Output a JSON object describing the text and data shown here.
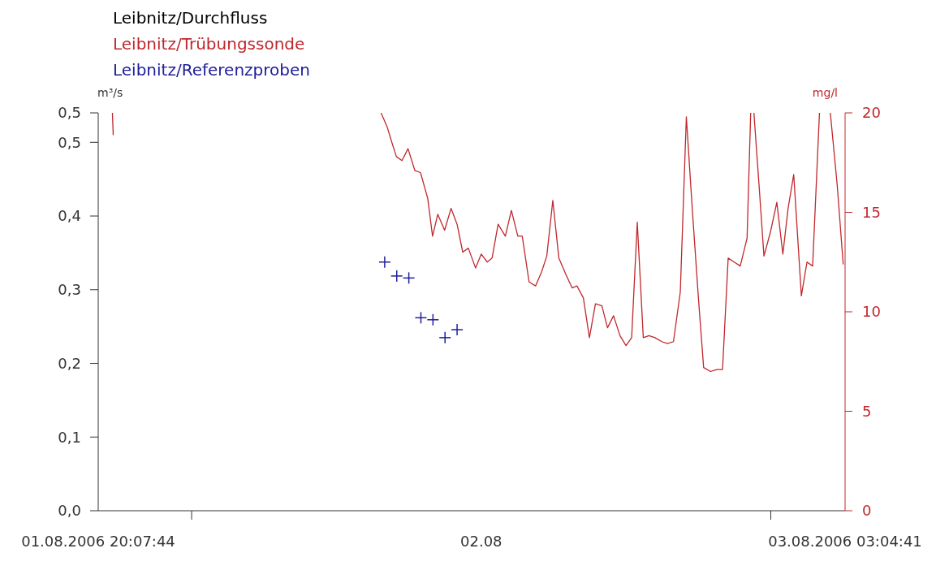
{
  "chart_data": {
    "type": "line",
    "xlim": [
      "2006-08-01T20:07:44",
      "2006-08-03T03:04:41"
    ],
    "xticks": [
      {
        "value": "2006-08-01T20:07:44",
        "label": "01.08.2006 20:07:44"
      },
      {
        "value": "2006-08-02T00:00",
        "label": null
      },
      {
        "value": "2006-08-02T12:00",
        "label": "02.08"
      },
      {
        "value": "2006-08-03T00:00",
        "label": null
      },
      {
        "value": "2006-08-03T03:04:41",
        "label": "03.08.2006 03:04:41"
      }
    ],
    "ylabel": "m³/s",
    "ylim": [
      0,
      0.54
    ],
    "yticks": [
      {
        "value": 0,
        "label": "0,0"
      },
      {
        "value": 0.1,
        "label": "0,1"
      },
      {
        "value": 0.2,
        "label": "0,2"
      },
      {
        "value": 0.3,
        "label": "0,3"
      },
      {
        "value": 0.4,
        "label": "0,4"
      },
      {
        "value": 0.5,
        "label": "0,5"
      },
      {
        "value": 0.54,
        "label": "0,5"
      }
    ],
    "y2label": "mg/l",
    "y2lim": [
      0,
      20
    ],
    "y2ticks": [
      0,
      5,
      10,
      15,
      20
    ],
    "legend": "top left",
    "marker": "none",
    "series": [
      {
        "name": "Leibnitz/Durchfluss",
        "axis": "y",
        "color": "#000000"
      },
      {
        "name": "Leibnitz/Trübungssonde",
        "axis": "y2",
        "color": "#c0282d",
        "x": [
          "2006-08-01T20:43",
          "2006-08-01T20:45",
          "2006-08-01T21:00",
          "2006-08-02T07:51",
          "2006-08-02T08:06",
          "2006-08-02T08:18",
          "2006-08-02T08:29",
          "2006-08-02T08:43",
          "2006-08-02T08:58",
          "2006-08-02T09:15",
          "2006-08-02T09:29",
          "2006-08-02T09:47",
          "2006-08-02T09:59",
          "2006-08-02T10:12",
          "2006-08-02T10:29",
          "2006-08-02T10:45",
          "2006-08-02T11:00",
          "2006-08-02T11:14",
          "2006-08-02T11:28",
          "2006-08-02T11:46",
          "2006-08-02T12:00",
          "2006-08-02T12:15",
          "2006-08-02T12:27",
          "2006-08-02T12:42",
          "2006-08-02T13:00",
          "2006-08-02T13:15",
          "2006-08-02T13:31",
          "2006-08-02T13:42",
          "2006-08-02T13:59",
          "2006-08-02T14:15",
          "2006-08-02T14:30",
          "2006-08-02T14:43",
          "2006-08-02T14:58",
          "2006-08-02T15:13",
          "2006-08-02T15:30",
          "2006-08-02T15:46",
          "2006-08-02T15:58",
          "2006-08-02T16:14",
          "2006-08-02T16:29",
          "2006-08-02T16:44",
          "2006-08-02T17:00",
          "2006-08-02T17:14",
          "2006-08-02T17:29",
          "2006-08-02T17:45",
          "2006-08-02T18:00",
          "2006-08-02T18:14",
          "2006-08-02T18:28",
          "2006-08-02T18:43",
          "2006-08-02T18:57",
          "2006-08-02T19:12",
          "2006-08-02T19:29",
          "2006-08-02T19:43",
          "2006-08-02T19:58",
          "2006-08-02T20:15",
          "2006-08-02T20:30",
          "2006-08-02T20:45",
          "2006-08-02T21:00",
          "2006-08-02T21:13",
          "2006-08-02T21:30",
          "2006-08-02T21:46",
          "2006-08-02T22:00",
          "2006-08-02T22:14",
          "2006-08-02T22:29",
          "2006-08-02T22:44",
          "2006-08-02T23:01",
          "2006-08-02T23:10",
          "2006-08-02T23:14",
          "2006-08-02T23:18",
          "2006-08-02T23:31",
          "2006-08-02T23:43",
          "2006-08-02T23:59",
          "2006-08-03T00:15",
          "2006-08-03T00:30",
          "2006-08-03T00:43",
          "2006-08-03T00:57",
          "2006-08-03T01:16",
          "2006-08-03T01:30",
          "2006-08-03T01:44",
          "2006-08-03T02:01",
          "2006-08-03T02:15",
          "2006-08-03T02:28",
          "2006-08-03T02:45",
          "2006-08-03T03:00"
        ],
        "values": [
          20,
          18.9,
          null,
          20,
          19.3,
          18.5,
          17.8,
          17.6,
          18.2,
          17.1,
          17.0,
          15.7,
          13.8,
          14.9,
          14.1,
          15.2,
          14.4,
          13.0,
          13.2,
          12.2,
          12.9,
          12.5,
          12.7,
          14.4,
          13.8,
          15.1,
          13.8,
          13.8,
          11.5,
          11.3,
          12.0,
          12.8,
          15.6,
          12.7,
          11.9,
          11.2,
          11.3,
          10.7,
          8.7,
          10.4,
          10.3,
          9.2,
          9.8,
          8.8,
          8.3,
          8.7,
          14.5,
          8.7,
          8.8,
          8.7,
          8.5,
          8.4,
          8.5,
          11.0,
          19.8,
          15.1,
          10.7,
          7.2,
          7.0,
          7.1,
          7.1,
          12.7,
          12.5,
          12.3,
          13.7,
          20,
          null,
          20,
          16.3,
          12.8,
          14.0,
          15.5,
          12.9,
          15.2,
          16.9,
          10.8,
          12.5,
          12.3,
          20,
          null,
          20,
          16.4,
          12.4
        ]
      },
      {
        "name": "Leibnitz/Referenzproben",
        "type": "scatter",
        "axis": "y2",
        "color": "#20209a",
        "marker": "cross",
        "x": [
          "2006-08-02T08:00",
          "2006-08-02T08:30",
          "2006-08-02T09:00",
          "2006-08-02T09:30",
          "2006-08-02T10:00",
          "2006-08-02T10:30",
          "2006-08-02T11:00"
        ],
        "values": [
          12.5,
          11.8,
          11.7,
          9.7,
          9.6,
          8.7,
          9.1
        ]
      }
    ]
  }
}
